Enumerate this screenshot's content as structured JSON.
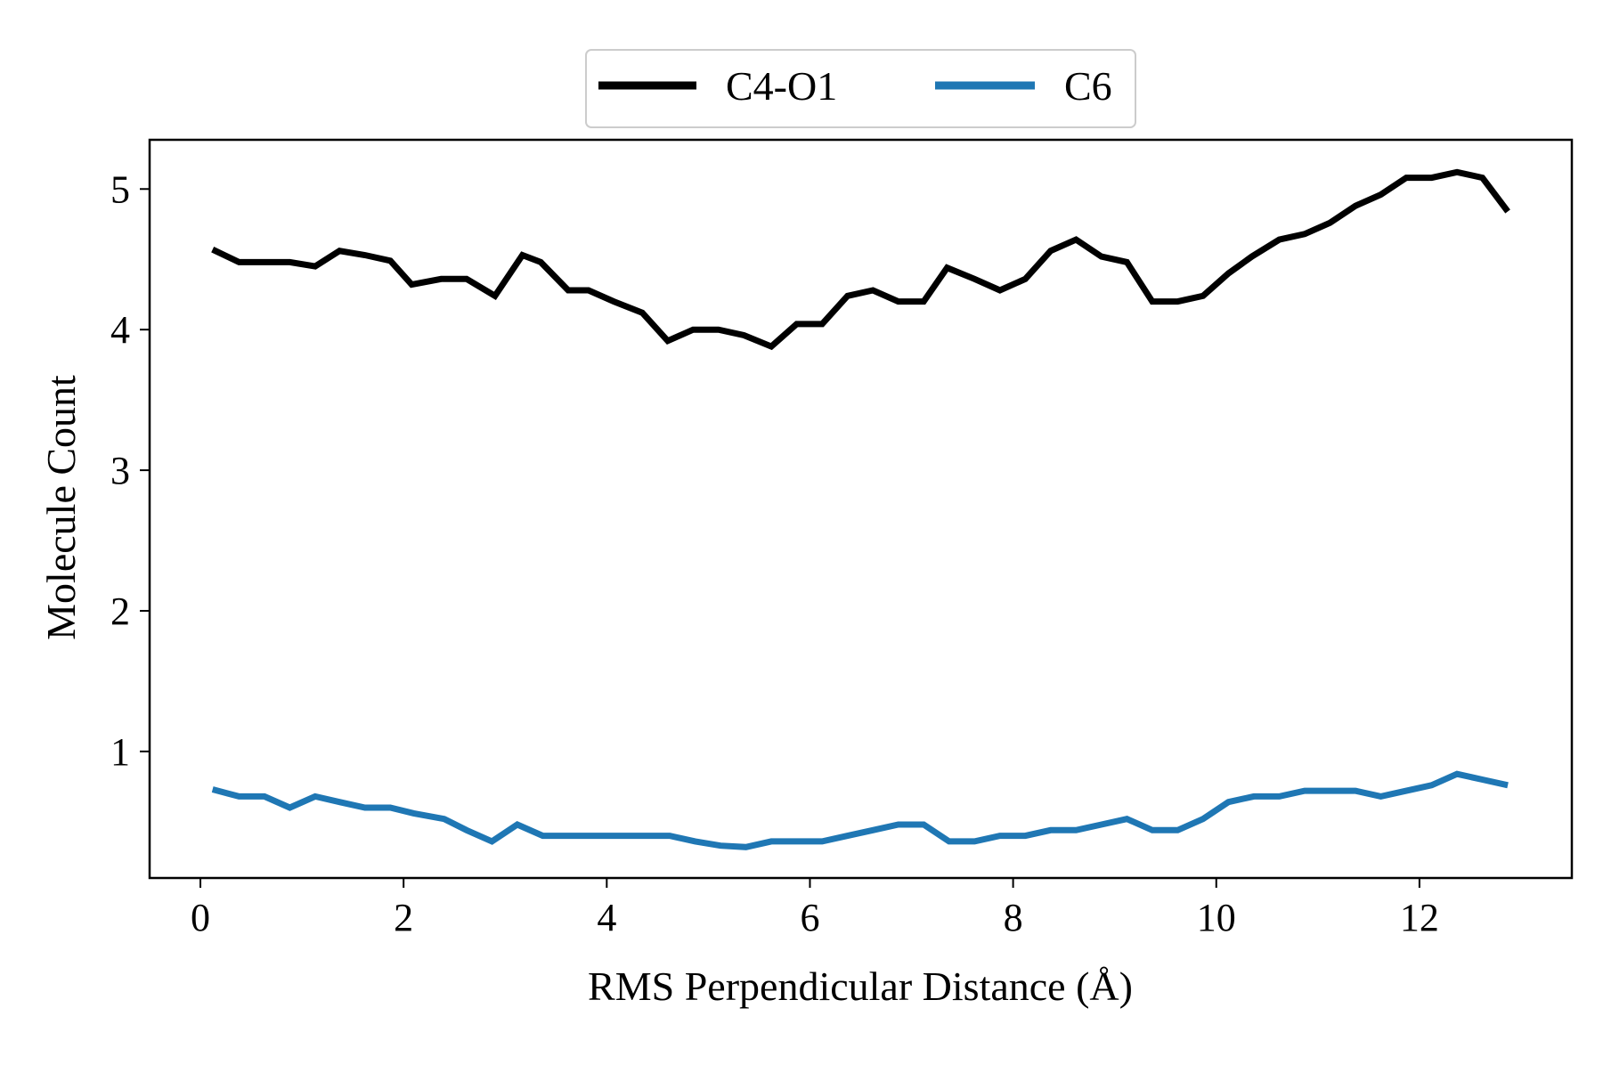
{
  "chart_data": {
    "type": "line",
    "title": "",
    "xlabel": "RMS Perpendicular Distance (Å)",
    "ylabel": "Molecule Count",
    "xlim": [
      -0.5,
      13.5
    ],
    "ylim": [
      0.1,
      5.35
    ],
    "xticks": [
      0,
      2,
      4,
      6,
      8,
      10,
      12
    ],
    "yticks": [
      1,
      2,
      3,
      4,
      5
    ],
    "grid": false,
    "legend_position": "top-center",
    "series": [
      {
        "name": "C4-O1",
        "color": "#000000",
        "points": [
          [
            0.12,
            4.57
          ],
          [
            0.38,
            4.48
          ],
          [
            0.63,
            4.48
          ],
          [
            0.88,
            4.48
          ],
          [
            1.13,
            4.45
          ],
          [
            1.37,
            4.56
          ],
          [
            1.62,
            4.53
          ],
          [
            1.87,
            4.49
          ],
          [
            2.08,
            4.32
          ],
          [
            2.37,
            4.36
          ],
          [
            2.62,
            4.36
          ],
          [
            2.9,
            4.24
          ],
          [
            3.17,
            4.53
          ],
          [
            3.35,
            4.48
          ],
          [
            3.62,
            4.28
          ],
          [
            3.82,
            4.28
          ],
          [
            4.07,
            4.2
          ],
          [
            4.35,
            4.12
          ],
          [
            4.6,
            3.92
          ],
          [
            4.85,
            4.0
          ],
          [
            5.1,
            4.0
          ],
          [
            5.35,
            3.96
          ],
          [
            5.62,
            3.88
          ],
          [
            5.87,
            4.04
          ],
          [
            6.12,
            4.04
          ],
          [
            6.37,
            4.24
          ],
          [
            6.62,
            4.28
          ],
          [
            6.87,
            4.2
          ],
          [
            7.12,
            4.2
          ],
          [
            7.35,
            4.44
          ],
          [
            7.62,
            4.36
          ],
          [
            7.87,
            4.28
          ],
          [
            8.12,
            4.36
          ],
          [
            8.37,
            4.56
          ],
          [
            8.62,
            4.64
          ],
          [
            8.87,
            4.52
          ],
          [
            9.12,
            4.48
          ],
          [
            9.37,
            4.2
          ],
          [
            9.62,
            4.2
          ],
          [
            9.87,
            4.24
          ],
          [
            10.12,
            4.4
          ],
          [
            10.35,
            4.52
          ],
          [
            10.62,
            4.64
          ],
          [
            10.87,
            4.68
          ],
          [
            11.12,
            4.76
          ],
          [
            11.37,
            4.88
          ],
          [
            11.62,
            4.96
          ],
          [
            11.87,
            5.08
          ],
          [
            12.12,
            5.08
          ],
          [
            12.37,
            5.12
          ],
          [
            12.62,
            5.08
          ],
          [
            12.87,
            4.84
          ]
        ]
      },
      {
        "name": "C6",
        "color": "#1f77b4",
        "points": [
          [
            0.12,
            0.73
          ],
          [
            0.38,
            0.68
          ],
          [
            0.63,
            0.68
          ],
          [
            0.88,
            0.6
          ],
          [
            1.13,
            0.68
          ],
          [
            1.37,
            0.64
          ],
          [
            1.62,
            0.6
          ],
          [
            1.87,
            0.6
          ],
          [
            2.1,
            0.56
          ],
          [
            2.4,
            0.52
          ],
          [
            2.62,
            0.44
          ],
          [
            2.87,
            0.36
          ],
          [
            3.12,
            0.48
          ],
          [
            3.37,
            0.4
          ],
          [
            3.62,
            0.4
          ],
          [
            3.87,
            0.4
          ],
          [
            4.12,
            0.4
          ],
          [
            4.37,
            0.4
          ],
          [
            4.62,
            0.4
          ],
          [
            4.87,
            0.36
          ],
          [
            5.12,
            0.33
          ],
          [
            5.37,
            0.32
          ],
          [
            5.62,
            0.36
          ],
          [
            5.87,
            0.36
          ],
          [
            6.12,
            0.36
          ],
          [
            6.37,
            0.4
          ],
          [
            6.62,
            0.44
          ],
          [
            6.87,
            0.48
          ],
          [
            7.12,
            0.48
          ],
          [
            7.37,
            0.36
          ],
          [
            7.62,
            0.36
          ],
          [
            7.87,
            0.4
          ],
          [
            8.12,
            0.4
          ],
          [
            8.37,
            0.44
          ],
          [
            8.62,
            0.44
          ],
          [
            8.87,
            0.48
          ],
          [
            9.12,
            0.52
          ],
          [
            9.37,
            0.44
          ],
          [
            9.62,
            0.44
          ],
          [
            9.87,
            0.52
          ],
          [
            10.12,
            0.64
          ],
          [
            10.37,
            0.68
          ],
          [
            10.62,
            0.68
          ],
          [
            10.87,
            0.72
          ],
          [
            11.12,
            0.72
          ],
          [
            11.37,
            0.72
          ],
          [
            11.62,
            0.68
          ],
          [
            11.87,
            0.72
          ],
          [
            12.12,
            0.76
          ],
          [
            12.37,
            0.84
          ],
          [
            12.62,
            0.8
          ],
          [
            12.87,
            0.76
          ]
        ]
      }
    ]
  }
}
